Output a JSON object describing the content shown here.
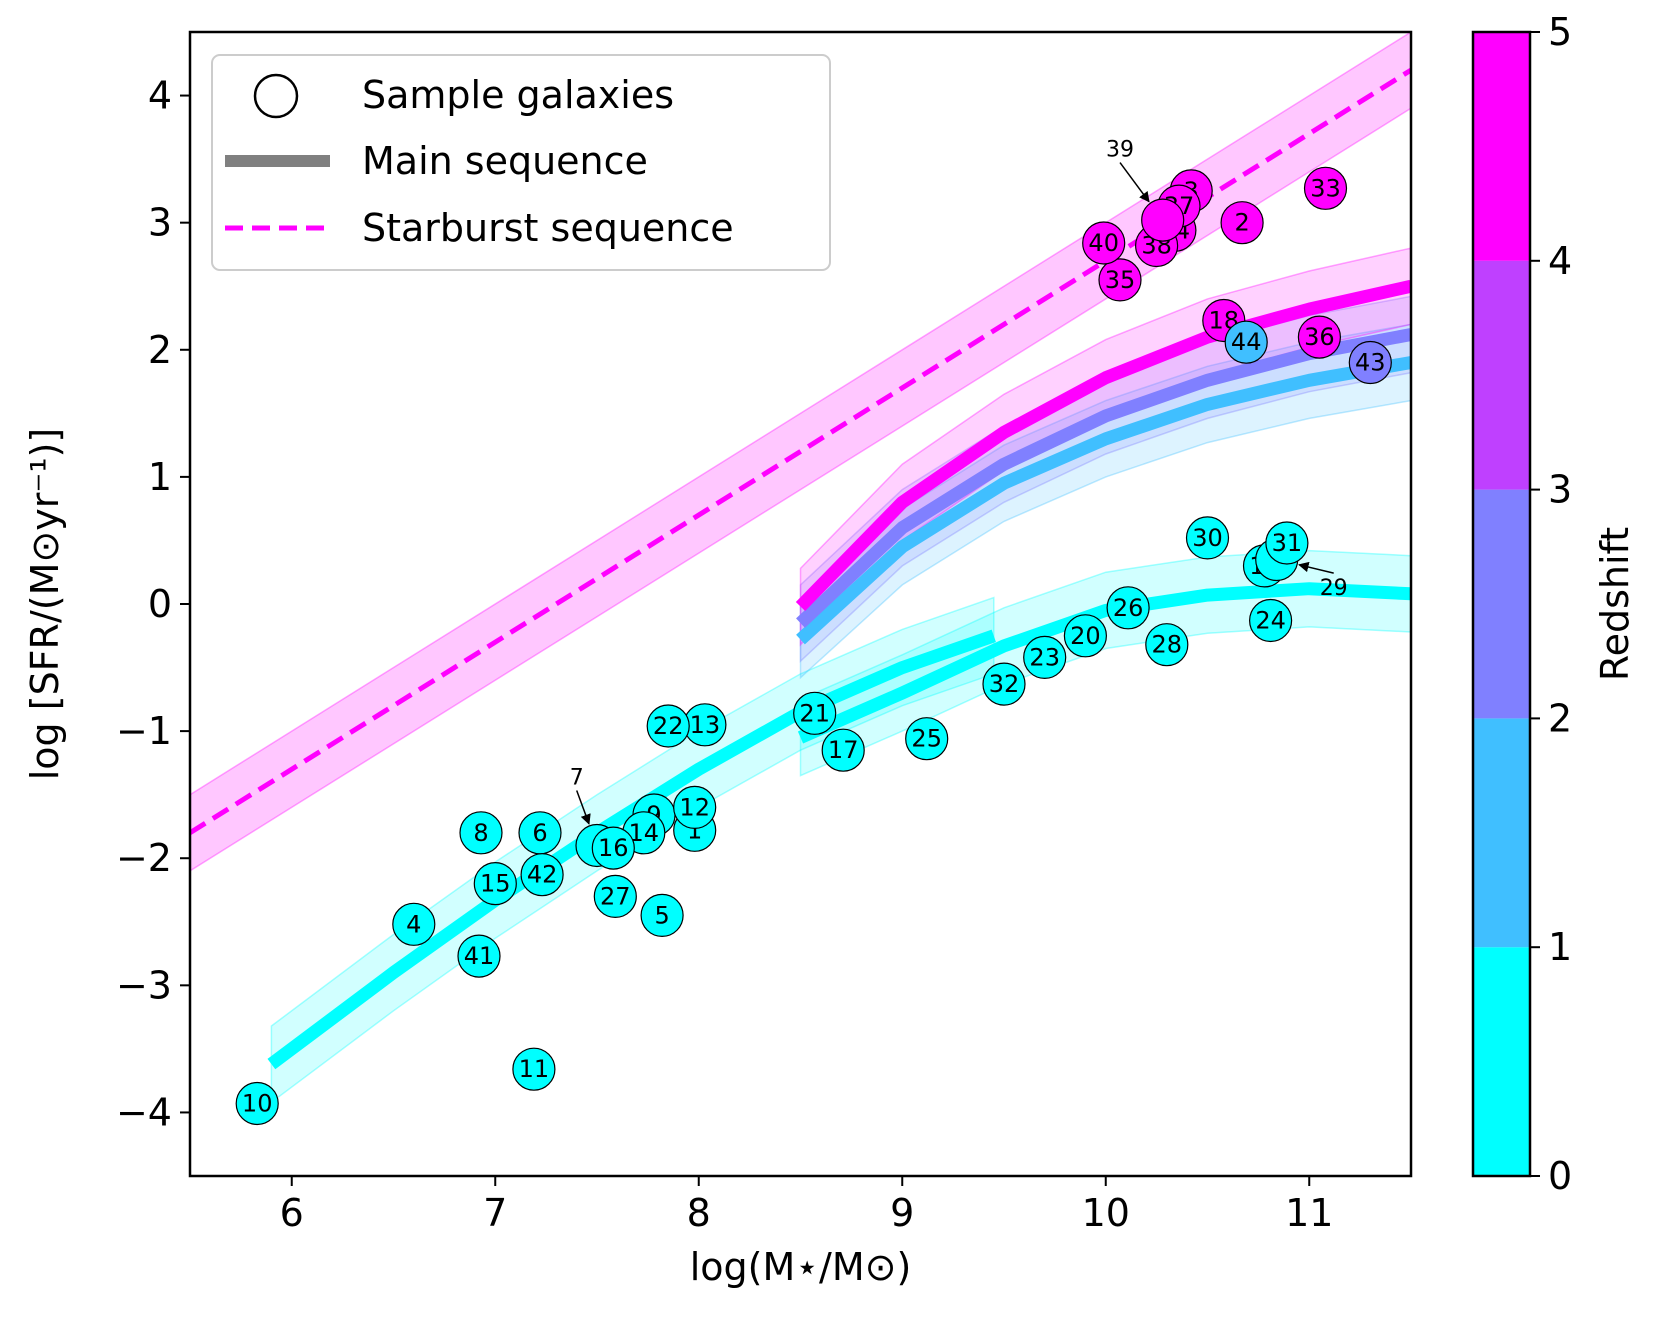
{
  "chart_data": {
    "type": "scatter",
    "xlabel": "log(M⋆/M⊙)",
    "ylabel": "log [SFR/(M⊙yr⁻¹)]",
    "xlim": [
      5.5,
      11.5
    ],
    "ylim": [
      -4.5,
      4.5
    ],
    "xticks": [
      6,
      7,
      8,
      9,
      10,
      11
    ],
    "yticks": [
      -4,
      -3,
      -2,
      -1,
      0,
      1,
      2,
      3,
      4
    ],
    "xtick_labels": [
      "6",
      "7",
      "8",
      "9",
      "10",
      "11"
    ],
    "ytick_labels": [
      "−4",
      "−3",
      "−2",
      "−1",
      "0",
      "1",
      "2",
      "3",
      "4"
    ],
    "grid": false,
    "legend": {
      "position": "top-left",
      "entries": [
        {
          "label": "Sample galaxies",
          "kind": "marker"
        },
        {
          "label": "Main sequence",
          "kind": "solid",
          "color": "#808080"
        },
        {
          "label": "Starburst sequence",
          "kind": "dashed",
          "color": "#ff00ff"
        }
      ]
    },
    "colorbar": {
      "label": "Redshift",
      "ticks": [
        0,
        1,
        2,
        3,
        4,
        5
      ],
      "tick_labels": [
        "0",
        "1",
        "2",
        "3",
        "4",
        "5"
      ],
      "bins": [
        {
          "from": 0,
          "to": 1,
          "color": "#00ffff"
        },
        {
          "from": 1,
          "to": 2,
          "color": "#40bfff"
        },
        {
          "from": 2,
          "to": 3,
          "color": "#8080ff"
        },
        {
          "from": 3,
          "to": 4,
          "color": "#bf40ff"
        },
        {
          "from": 4,
          "to": 5,
          "color": "#ff00ff"
        }
      ]
    },
    "starburst_sequence": {
      "color": "#ff00ff",
      "x": [
        5.5,
        11.5
      ],
      "y": [
        -1.8,
        4.2
      ],
      "band": 0.3
    },
    "main_sequences": [
      {
        "color": "#00ffff",
        "x": [
          5.9,
          6.5,
          7.0,
          7.5,
          8.0,
          8.5,
          9.0,
          9.45
        ],
        "y": [
          -3.62,
          -2.9,
          -2.33,
          -1.8,
          -1.3,
          -0.85,
          -0.5,
          -0.25
        ],
        "band": 0.3
      },
      {
        "color": "#00ffff",
        "x": [
          8.5,
          9.0,
          9.5,
          10.0,
          10.5,
          11.0,
          11.5
        ],
        "y": [
          -1.05,
          -0.7,
          -0.33,
          -0.05,
          0.07,
          0.12,
          0.08
        ],
        "band": 0.3
      },
      {
        "color": "#40bfff",
        "x": [
          8.5,
          9.0,
          9.5,
          10.0,
          10.5,
          11.0,
          11.5
        ],
        "y": [
          -0.28,
          0.45,
          0.95,
          1.3,
          1.57,
          1.76,
          1.9
        ],
        "band": 0.3
      },
      {
        "color": "#8080ff",
        "x": [
          8.5,
          9.0,
          9.5,
          10.0,
          10.5,
          11.0,
          11.5
        ],
        "y": [
          -0.15,
          0.6,
          1.1,
          1.48,
          1.76,
          1.97,
          2.12
        ],
        "band": 0.3
      },
      {
        "color": "#ff00ff",
        "x": [
          8.5,
          9.0,
          9.5,
          10.0,
          10.5,
          11.0,
          11.5
        ],
        "y": [
          -0.02,
          0.8,
          1.35,
          1.78,
          2.1,
          2.32,
          2.5
        ],
        "band": 0.3
      }
    ],
    "points": [
      {
        "id": "1",
        "x": 7.98,
        "y": -1.78,
        "z": 0.5
      },
      {
        "id": "2",
        "x": 10.67,
        "y": 3.0,
        "z": 4.5
      },
      {
        "id": "3",
        "x": 10.42,
        "y": 3.25,
        "z": 4.5
      },
      {
        "id": "4",
        "x": 6.6,
        "y": -2.52,
        "z": 0.5
      },
      {
        "id": "5",
        "x": 7.82,
        "y": -2.45,
        "z": 0.5
      },
      {
        "id": "6",
        "x": 7.22,
        "y": -1.8,
        "z": 0.5
      },
      {
        "id": "7",
        "x": 7.5,
        "y": -1.9,
        "z": 0.5
      },
      {
        "id": "8",
        "x": 6.93,
        "y": -1.8,
        "z": 0.5
      },
      {
        "id": "9",
        "x": 7.78,
        "y": -1.66,
        "z": 0.5
      },
      {
        "id": "10",
        "x": 5.83,
        "y": -3.93,
        "z": 0.5
      },
      {
        "id": "11",
        "x": 7.19,
        "y": -3.66,
        "z": 0.5
      },
      {
        "id": "12",
        "x": 7.98,
        "y": -1.6,
        "z": 0.5
      },
      {
        "id": "13",
        "x": 8.03,
        "y": -0.95,
        "z": 0.5
      },
      {
        "id": "14",
        "x": 7.73,
        "y": -1.8,
        "z": 0.5
      },
      {
        "id": "15",
        "x": 7.0,
        "y": -2.2,
        "z": 0.5
      },
      {
        "id": "16",
        "x": 7.58,
        "y": -1.92,
        "z": 0.5
      },
      {
        "id": "17",
        "x": 8.71,
        "y": -1.15,
        "z": 0.5
      },
      {
        "id": "18",
        "x": 10.58,
        "y": 2.23,
        "z": 4.5
      },
      {
        "id": "19",
        "x": 10.78,
        "y": 0.3,
        "z": 0.5
      },
      {
        "id": "20",
        "x": 9.9,
        "y": -0.25,
        "z": 0.5
      },
      {
        "id": "21",
        "x": 8.57,
        "y": -0.86,
        "z": 0.5
      },
      {
        "id": "22",
        "x": 7.85,
        "y": -0.96,
        "z": 0.5
      },
      {
        "id": "23",
        "x": 9.7,
        "y": -0.42,
        "z": 0.5
      },
      {
        "id": "24",
        "x": 10.81,
        "y": -0.13,
        "z": 0.5
      },
      {
        "id": "25",
        "x": 9.12,
        "y": -1.06,
        "z": 0.5
      },
      {
        "id": "26",
        "x": 10.11,
        "y": -0.03,
        "z": 0.5
      },
      {
        "id": "27",
        "x": 7.59,
        "y": -2.3,
        "z": 0.5
      },
      {
        "id": "28",
        "x": 10.3,
        "y": -0.32,
        "z": 0.5
      },
      {
        "id": "29",
        "x": 10.84,
        "y": 0.35,
        "z": 0.5
      },
      {
        "id": "30",
        "x": 10.5,
        "y": 0.52,
        "z": 0.5
      },
      {
        "id": "31",
        "x": 10.89,
        "y": 0.48,
        "z": 0.5
      },
      {
        "id": "32",
        "x": 9.5,
        "y": -0.63,
        "z": 0.5
      },
      {
        "id": "33",
        "x": 11.08,
        "y": 3.27,
        "z": 4.5
      },
      {
        "id": "34",
        "x": 10.34,
        "y": 2.94,
        "z": 4.5
      },
      {
        "id": "35",
        "x": 10.07,
        "y": 2.55,
        "z": 4.5
      },
      {
        "id": "36",
        "x": 11.05,
        "y": 2.1,
        "z": 4.5
      },
      {
        "id": "37",
        "x": 10.36,
        "y": 3.13,
        "z": 4.5
      },
      {
        "id": "38",
        "x": 10.25,
        "y": 2.82,
        "z": 4.5
      },
      {
        "id": "39",
        "x": 10.28,
        "y": 3.02,
        "z": 4.5
      },
      {
        "id": "40",
        "x": 9.99,
        "y": 2.84,
        "z": 4.5
      },
      {
        "id": "41",
        "x": 6.92,
        "y": -2.77,
        "z": 0.5
      },
      {
        "id": "42",
        "x": 7.23,
        "y": -2.13,
        "z": 0.5
      },
      {
        "id": "43",
        "x": 11.3,
        "y": 1.9,
        "z": 2.5
      },
      {
        "id": "44",
        "x": 10.69,
        "y": 2.06,
        "z": 1.5
      }
    ],
    "hidden_labels": [
      "7",
      "29",
      "39"
    ],
    "annotations": [
      {
        "text": "7",
        "target": "7",
        "label_x": 7.4,
        "label_y": -1.42
      },
      {
        "text": "29",
        "target": "29",
        "label_x": 11.12,
        "label_y": 0.07
      },
      {
        "text": "39",
        "target": "39",
        "label_x": 10.07,
        "label_y": 3.52
      }
    ]
  }
}
